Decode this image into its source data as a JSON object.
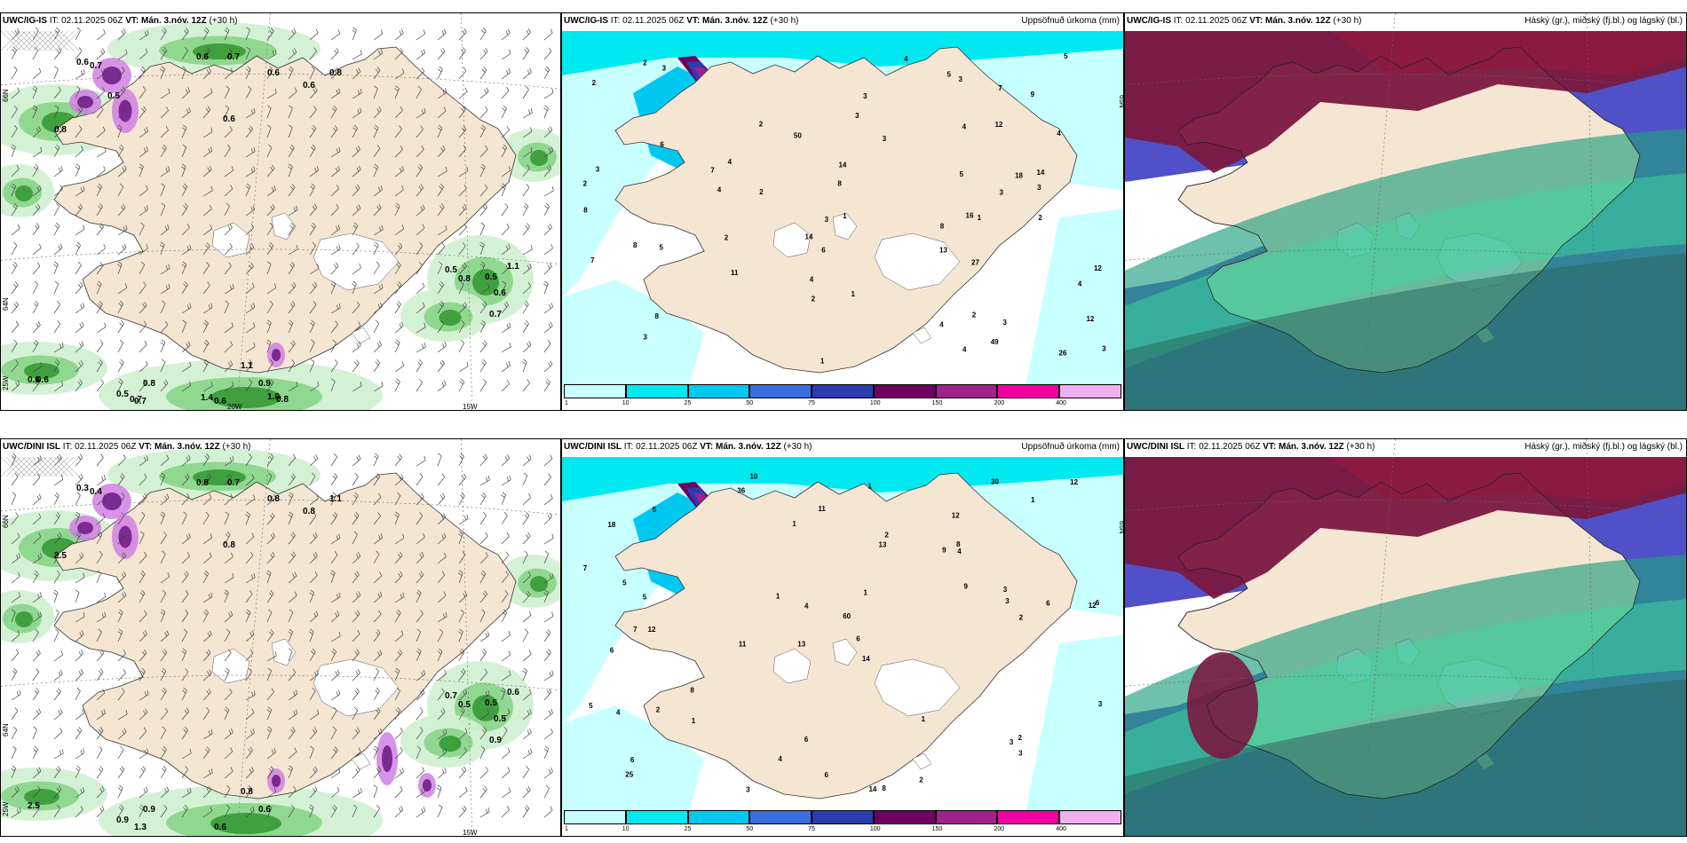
{
  "rows": [
    {
      "model": "UWC/IG-IS",
      "it": "IT: 02.11.2025 06Z",
      "vt": "VT: Mán. 3.nóv. 12Z",
      "lead": "(+30 h)",
      "wind_panel": {
        "values": [
          "0.6",
          "0.7",
          "0.6",
          "0.7",
          "0.6",
          "0.6",
          "0.6",
          "0.8",
          "0.8",
          "0.5",
          "0.8",
          "1.1",
          "0.5",
          "0.6",
          "0.7",
          "1.1",
          "0.9",
          "0.8",
          "0.5",
          "0.6",
          "0.7",
          "0.6",
          "0.8",
          "0.5",
          "1.4",
          "1.0",
          "0.7",
          "0.6"
        ],
        "lat_labels": [
          "66N",
          "64N",
          "25W"
        ],
        "lon_labels": [
          "20W",
          "15W"
        ]
      },
      "precip_panel": {
        "title": "Uppsöfnuð úrkoma (mm)",
        "values": [
          "13",
          "12",
          "18",
          "4",
          "4",
          "12",
          "14",
          "14",
          "12",
          "49",
          "16",
          "8",
          "7",
          "27",
          "11",
          "26",
          "9",
          "8",
          "7",
          "50",
          "6",
          "8",
          "5",
          "5",
          "3",
          "8",
          "6",
          "4",
          "3",
          "5",
          "4",
          "4",
          "3",
          "2",
          "2",
          "3",
          "3",
          "1",
          "1",
          "4",
          "14",
          "2",
          "3",
          "1",
          "2",
          "2",
          "5",
          "4",
          "3",
          "3",
          "4",
          "7",
          "8",
          "3",
          "2",
          "4",
          "3",
          "2",
          "3",
          "1",
          "2",
          "2",
          "3"
        ],
        "lat_labels": [
          "65N"
        ],
        "colorbar": [
          "1",
          "10",
          "25",
          "50",
          "75",
          "100",
          "150",
          "200",
          "400"
        ]
      },
      "cloud_panel": {
        "title": "Háský (gr.), miðský (fj.bl.) og lágský (bl.)"
      }
    },
    {
      "model": "UWC/DINI ISL",
      "it": "IT: 02.11.2025 06Z",
      "vt": "VT: Mán. 3.nóv. 12Z",
      "lead": "(+30 h)",
      "wind_panel": {
        "values": [
          "0.3",
          "0.4",
          "0.8",
          "0.7",
          "0.8",
          "0.8",
          "0.8",
          "1.1",
          "2.5",
          "0.7",
          "0.5",
          "0.6",
          "0.5",
          "0.5",
          "0.9",
          "0.8",
          "0.6",
          "0.9",
          "0.9",
          "2.5",
          "1.3",
          "0.6"
        ],
        "lat_labels": [
          "66N",
          "64N",
          "25W"
        ],
        "lon_labels": [
          "15W"
        ]
      },
      "precip_panel": {
        "title": "Uppsöfnuð úrkoma (mm)",
        "values": [
          "10",
          "12",
          "12",
          "13",
          "14",
          "12",
          "18",
          "9",
          "6",
          "13",
          "60",
          "25",
          "36",
          "11",
          "14",
          "8",
          "6",
          "30",
          "9",
          "8",
          "5",
          "7",
          "6",
          "6",
          "5",
          "5",
          "4",
          "3",
          "2",
          "4",
          "3",
          "2",
          "2",
          "1",
          "1",
          "3",
          "3",
          "4",
          "12",
          "11",
          "6",
          "3",
          "2",
          "5",
          "6",
          "4",
          "3",
          "8",
          "7",
          "6",
          "1",
          "2",
          "1",
          "1",
          "1",
          "1"
        ],
        "lat_labels": [
          "65N"
        ],
        "colorbar": [
          "1",
          "10",
          "25",
          "50",
          "75",
          "100",
          "150",
          "200",
          "400"
        ]
      },
      "cloud_panel": {
        "title": "Háský (gr.), miðský (fj.bl.) og lágský (bl.)"
      }
    }
  ],
  "colors": {
    "land": "#f5e6d3",
    "precip_scale": [
      "#c8ffff",
      "#00e8f0",
      "#00c8f0",
      "#3a6ee0",
      "#2a3cb0",
      "#700060",
      "#a0208c",
      "#f000a0",
      "#f0b0f0"
    ],
    "wind_green": [
      "#d0f0d0",
      "#90d890",
      "#40a040",
      "#106010"
    ],
    "high_cloud": "#7a1840",
    "mid_cloud": "#5050c8",
    "low_cloud": "#20a080"
  }
}
